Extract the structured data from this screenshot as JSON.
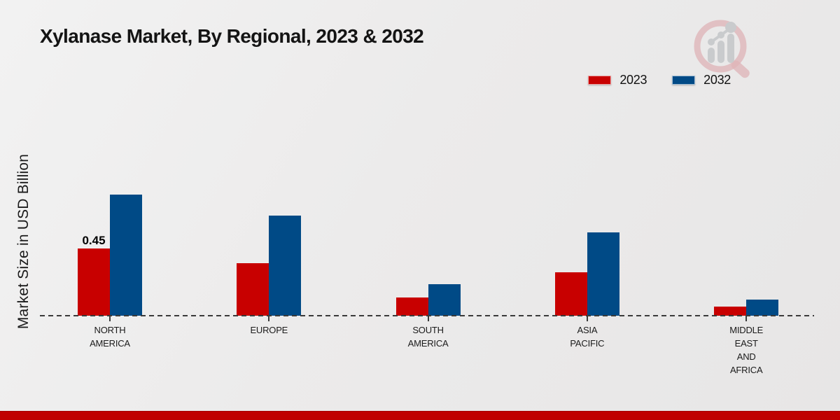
{
  "header": {
    "title": "Xylanase Market, By Regional, 2023 & 2032"
  },
  "chart_data": {
    "type": "bar",
    "title": "Xylanase Market, By Regional, 2023 & 2032",
    "ylabel": "Market Size in USD Billion",
    "xlabel": "",
    "categories": [
      "NORTH\nAMERICA",
      "EUROPE",
      "SOUTH\nAMERICA",
      "ASIA\nPACIFIC",
      "MIDDLE\nEAST\nAND\nAFRICA"
    ],
    "series": [
      {
        "name": "2023",
        "color": "#c80000",
        "values": [
          0.45,
          0.35,
          0.12,
          0.29,
          0.06
        ]
      },
      {
        "name": "2032",
        "color": "#004a86",
        "values": [
          0.81,
          0.67,
          0.21,
          0.56,
          0.11
        ]
      }
    ],
    "data_labels": [
      {
        "series_index": 0,
        "category_index": 0,
        "text": "0.45"
      }
    ],
    "ylim": [
      0,
      1.0
    ],
    "grid": false,
    "legend_position": "top-right",
    "baseline_style": "dashed"
  },
  "branding": {
    "logo_name": "magnifier-bar-chart-logo",
    "logo_ring_color": "#ddadb2",
    "logo_bar_color": "#c6c8ca"
  },
  "footer": {
    "band_color": "#c00000"
  }
}
